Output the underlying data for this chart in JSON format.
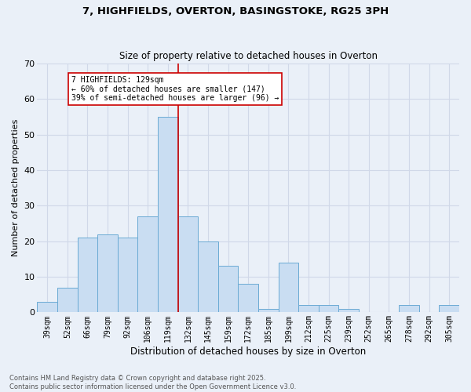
{
  "title_line1": "7, HIGHFIELDS, OVERTON, BASINGSTOKE, RG25 3PH",
  "title_line2": "Size of property relative to detached houses in Overton",
  "xlabel": "Distribution of detached houses by size in Overton",
  "ylabel": "Number of detached properties",
  "categories": [
    "39sqm",
    "52sqm",
    "66sqm",
    "79sqm",
    "92sqm",
    "106sqm",
    "119sqm",
    "132sqm",
    "145sqm",
    "159sqm",
    "172sqm",
    "185sqm",
    "199sqm",
    "212sqm",
    "225sqm",
    "239sqm",
    "252sqm",
    "265sqm",
    "278sqm",
    "292sqm",
    "305sqm"
  ],
  "values": [
    3,
    7,
    21,
    22,
    21,
    27,
    55,
    27,
    20,
    13,
    8,
    1,
    14,
    2,
    2,
    1,
    0,
    0,
    2,
    0,
    2
  ],
  "bar_color": "#c9ddf2",
  "bar_edge_color": "#6aaad4",
  "vline_color": "#cc0000",
  "annotation_text": "7 HIGHFIELDS: 129sqm\n← 60% of detached houses are smaller (147)\n39% of semi-detached houses are larger (96) →",
  "annotation_box_color": "#ffffff",
  "annotation_box_edge_color": "#cc0000",
  "ylim": [
    0,
    70
  ],
  "yticks": [
    0,
    10,
    20,
    30,
    40,
    50,
    60,
    70
  ],
  "grid_color": "#d0d8e8",
  "bg_color": "#eaf0f8",
  "footer_line1": "Contains HM Land Registry data © Crown copyright and database right 2025.",
  "footer_line2": "Contains public sector information licensed under the Open Government Licence v3.0."
}
